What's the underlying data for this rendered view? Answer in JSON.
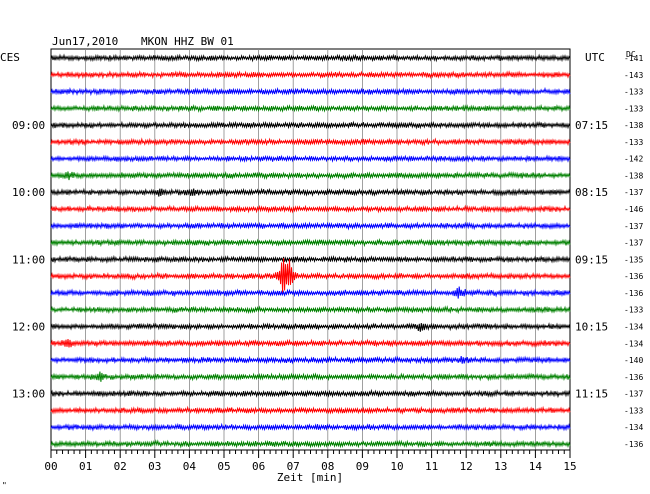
{
  "header": {
    "date": "Jun17,2010",
    "station": "MKON HHZ BW 01",
    "left_tz": "CES",
    "right_tz": "UTC",
    "dc_label": "DC"
  },
  "footer": {
    "xlabel": "Zeit [min]",
    "corner_mark": "\""
  },
  "chart_data": {
    "type": "line",
    "title": "Jun17,2010   MKON HHZ BW 01",
    "xlabel": "Zeit [min]",
    "xlim": [
      0,
      15
    ],
    "x_ticks": [
      "00",
      "01",
      "02",
      "03",
      "04",
      "05",
      "06",
      "07",
      "08",
      "09",
      "10",
      "11",
      "12",
      "13",
      "14",
      "15"
    ],
    "minor_ticks_per_minute": 6,
    "grid": true,
    "trace_colors": [
      "#000000",
      "#ff0000",
      "#0000ff",
      "#008000"
    ],
    "trace_count": 24,
    "left_time_labels": [
      {
        "row": 4,
        "text": "09:00"
      },
      {
        "row": 8,
        "text": "10:00"
      },
      {
        "row": 12,
        "text": "11:00"
      },
      {
        "row": 16,
        "text": "12:00"
      },
      {
        "row": 20,
        "text": "13:00"
      }
    ],
    "right_time_labels": [
      {
        "row": 4,
        "text": "07:15"
      },
      {
        "row": 8,
        "text": "08:15"
      },
      {
        "row": 12,
        "text": "09:15"
      },
      {
        "row": 16,
        "text": "10:15"
      },
      {
        "row": 20,
        "text": "11:15"
      }
    ],
    "dc_values": [
      "-141",
      "-143",
      "-133",
      "-133",
      "-138",
      "-133",
      "-142",
      "-138",
      "-137",
      "-146",
      "-137",
      "-137",
      "-135",
      "-136",
      "-136",
      "-133",
      "-134",
      "-134",
      "-140",
      "-136",
      "-137",
      "-133",
      "-134",
      "-136"
    ],
    "events": [
      {
        "row": 7,
        "minute": 0.5,
        "amplitude": 4
      },
      {
        "row": 8,
        "minute": 3.1,
        "amplitude": 4
      },
      {
        "row": 8,
        "minute": 4.1,
        "amplitude": 4
      },
      {
        "row": 13,
        "minute": 6.7,
        "amplitude": 22
      },
      {
        "row": 13,
        "minute": 6.9,
        "amplitude": 14
      },
      {
        "row": 14,
        "minute": 11.8,
        "amplitude": 7
      },
      {
        "row": 16,
        "minute": 10.7,
        "amplitude": 5
      },
      {
        "row": 17,
        "minute": 0.5,
        "amplitude": 5
      },
      {
        "row": 18,
        "minute": 11.9,
        "amplitude": 4
      },
      {
        "row": 19,
        "minute": 1.4,
        "amplitude": 6
      }
    ]
  }
}
